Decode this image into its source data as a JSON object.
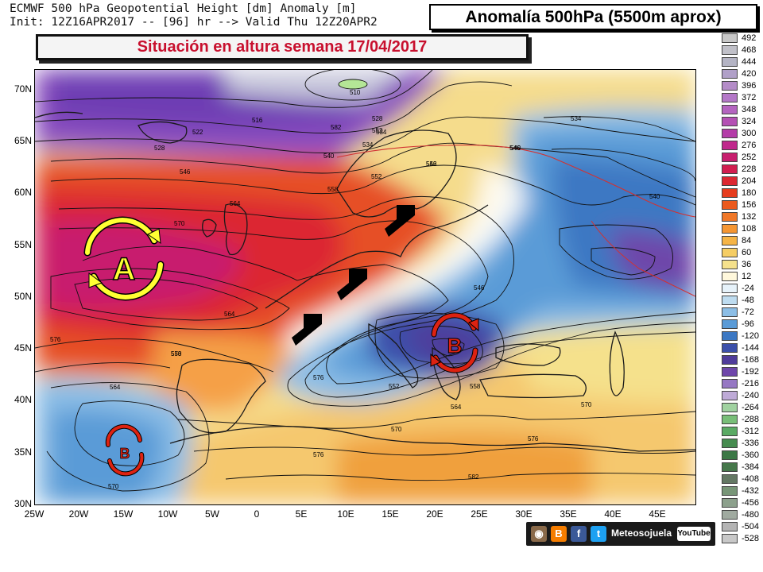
{
  "header": {
    "line1": "ECMWF 500 hPa Geopotential Height [dm] Anomaly [m]",
    "line2": "Init: 12Z16APR2017 -- [96] hr --> Valid Thu 12Z20APR2"
  },
  "badge": "Anomalía 500hPa (5500m aprox)",
  "subtitle": "Situación en altura semana 17/04/2017",
  "lat_labels": [
    "70N",
    "65N",
    "60N",
    "55N",
    "50N",
    "45N",
    "40N",
    "35N",
    "30N"
  ],
  "lon_labels": [
    "25W",
    "20W",
    "15W",
    "10W",
    "5W",
    "0",
    "5E",
    "10E",
    "15E",
    "20E",
    "25E",
    "30E",
    "35E",
    "40E",
    "45E"
  ],
  "pressure_centers": [
    {
      "name": "high",
      "label": "A",
      "ring_color": "#ffff33",
      "text_color": "#ffff33"
    },
    {
      "name": "low-europe",
      "label": "B",
      "ring_color": "#dd2211",
      "text_color": "#dd2211"
    },
    {
      "name": "low-atlantic",
      "label": "B",
      "ring_color": "#dd2211",
      "text_color": "#dd2211"
    }
  ],
  "contour_labels": [
    "510",
    "516",
    "522",
    "528",
    "534",
    "540",
    "546",
    "552",
    "558",
    "564",
    "570",
    "576",
    "582",
    "528",
    "534",
    "540",
    "546",
    "552",
    "558",
    "564",
    "570",
    "576",
    "546",
    "552",
    "558",
    "564",
    "570",
    "570",
    "576",
    "564",
    "570",
    "576",
    "582",
    "534",
    "540",
    "546",
    "552"
  ],
  "legend": [
    {
      "value": "492",
      "color": "#c8c8c8"
    },
    {
      "value": "468",
      "color": "#c0c0c8"
    },
    {
      "value": "444",
      "color": "#b4b4c4"
    },
    {
      "value": "420",
      "color": "#b0a0c8"
    },
    {
      "value": "396",
      "color": "#b48cc8"
    },
    {
      "value": "372",
      "color": "#b478c8"
    },
    {
      "value": "348",
      "color": "#b464c0"
    },
    {
      "value": "324",
      "color": "#b450b4"
    },
    {
      "value": "300",
      "color": "#b43ca8"
    },
    {
      "value": "276",
      "color": "#c0288c"
    },
    {
      "value": "252",
      "color": "#c81e6e"
    },
    {
      "value": "228",
      "color": "#d21e50"
    },
    {
      "value": "204",
      "color": "#dc2832"
    },
    {
      "value": "180",
      "color": "#e63c1e"
    },
    {
      "value": "156",
      "color": "#eb5a1e"
    },
    {
      "value": "132",
      "color": "#f07828"
    },
    {
      "value": "108",
      "color": "#f59632"
    },
    {
      "value": "84",
      "color": "#f5b446"
    },
    {
      "value": "60",
      "color": "#f5cd64"
    },
    {
      "value": "36",
      "color": "#f5e18c"
    },
    {
      "value": "12",
      "color": "#fff8dc"
    },
    {
      "value": "-24",
      "color": "#e6f2fa"
    },
    {
      "value": "-48",
      "color": "#bedcf0"
    },
    {
      "value": "-72",
      "color": "#8cbee6"
    },
    {
      "value": "-96",
      "color": "#5a9bd7"
    },
    {
      "value": "-120",
      "color": "#3c78c3"
    },
    {
      "value": "-144",
      "color": "#3c50aa"
    },
    {
      "value": "-168",
      "color": "#503c9b"
    },
    {
      "value": "-192",
      "color": "#6e46aa"
    },
    {
      "value": "-216",
      "color": "#9678c3"
    },
    {
      "value": "-240",
      "color": "#beaad7"
    },
    {
      "value": "-264",
      "color": "#a0d2a0"
    },
    {
      "value": "-288",
      "color": "#78be78"
    },
    {
      "value": "-312",
      "color": "#5aaa64"
    },
    {
      "value": "-336",
      "color": "#468c50"
    },
    {
      "value": "-360",
      "color": "#3c7846"
    },
    {
      "value": "-384",
      "color": "#46784b"
    },
    {
      "value": "-408",
      "color": "#647864"
    },
    {
      "value": "-432",
      "color": "#789678"
    },
    {
      "value": "-456",
      "color": "#8ca08c"
    },
    {
      "value": "-480",
      "color": "#a0aaa0"
    },
    {
      "value": "-504",
      "color": "#b4b4b4"
    },
    {
      "value": "-528",
      "color": "#c8c8c8"
    }
  ],
  "social": {
    "name": "Meteosojuela",
    "youtube": "YouTube",
    "icons": [
      "camera-icon",
      "blogger-icon",
      "facebook-icon",
      "twitter-icon"
    ]
  }
}
